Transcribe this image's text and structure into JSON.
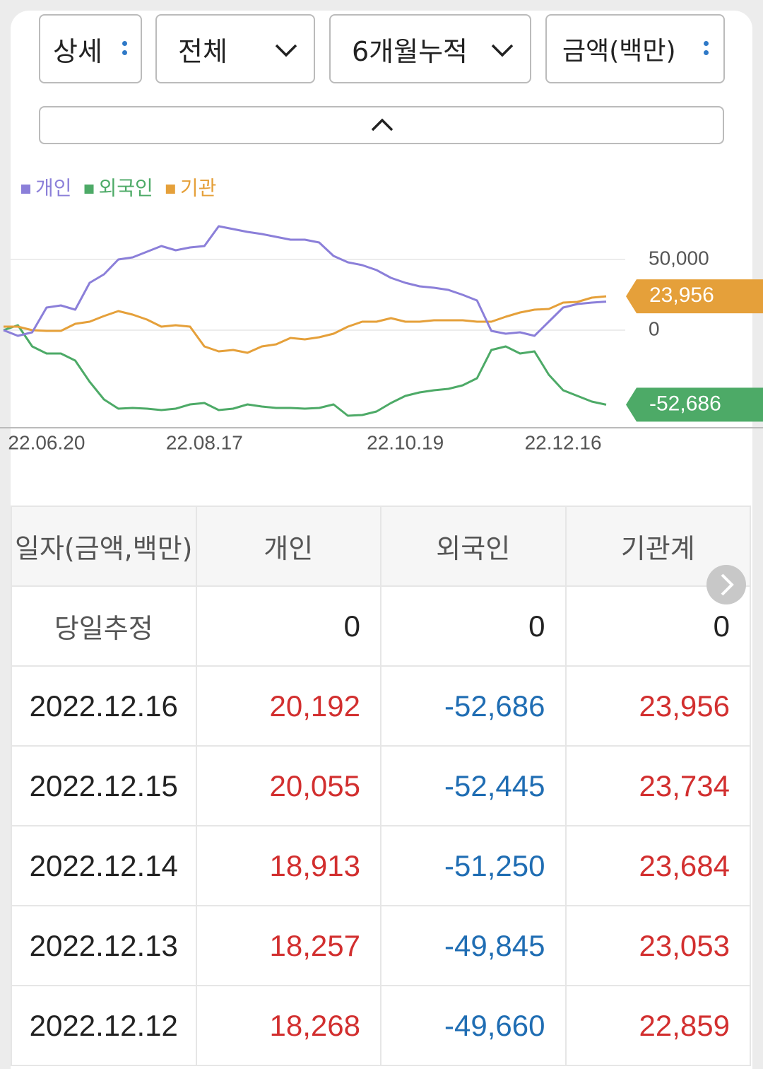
{
  "controls": {
    "detail": "상세",
    "scope": "전체",
    "period": "6개월누적",
    "unit": "금액(백만)"
  },
  "chart_data": {
    "type": "line",
    "categories": [
      null,
      null,
      null,
      "22.06.20",
      null,
      null,
      null,
      null,
      null,
      null,
      null,
      null,
      null,
      null,
      "22.08.17",
      null,
      null,
      null,
      null,
      null,
      null,
      null,
      null,
      null,
      null,
      null,
      null,
      null,
      "22.10.19",
      null,
      null,
      null,
      null,
      null,
      null,
      null,
      null,
      null,
      null,
      "22.12.16",
      null,
      null,
      null
    ],
    "series": [
      {
        "name": "개인",
        "color": "#8b7fd9",
        "values": [
          0,
          -4000,
          -1500,
          16000,
          17500,
          14500,
          33500,
          39500,
          50000,
          51500,
          55500,
          59500,
          56500,
          58500,
          59500,
          73500,
          71500,
          69500,
          68000,
          66000,
          64000,
          64000,
          62000,
          52500,
          48000,
          46000,
          42500,
          37000,
          33500,
          31000,
          30000,
          28500,
          25000,
          21000,
          -500,
          -2500,
          -1500,
          -4000,
          6000,
          16000,
          18500,
          19500,
          20192
        ]
      },
      {
        "name": "외국인",
        "color": "#4daa67",
        "end_label": "-52,686",
        "values": [
          0,
          3500,
          -11500,
          -16500,
          -16500,
          -21500,
          -36500,
          -49000,
          -55500,
          -55000,
          -55500,
          -56500,
          -55500,
          -52500,
          -51500,
          -56500,
          -55500,
          -52500,
          -54000,
          -55000,
          -55000,
          -55500,
          -55000,
          -52500,
          -60500,
          -60000,
          -57500,
          -51500,
          -46500,
          -44000,
          -42500,
          -41500,
          -39000,
          -34000,
          -14000,
          -11500,
          -16500,
          -15000,
          -31500,
          -42500,
          -46500,
          -50500,
          -52686
        ]
      },
      {
        "name": "기관",
        "color": "#e5a03a",
        "end_label": "23,956",
        "values": [
          2500,
          2500,
          0,
          -500,
          -500,
          4500,
          6000,
          10000,
          13500,
          11000,
          7500,
          2500,
          3500,
          2500,
          -11500,
          -15000,
          -14000,
          -16000,
          -11500,
          -10000,
          -5500,
          -6500,
          -5000,
          -2500,
          2500,
          6000,
          6000,
          8500,
          6000,
          6000,
          7000,
          7000,
          7000,
          6000,
          6000,
          9500,
          12500,
          14500,
          15000,
          19500,
          20000,
          23000,
          23956
        ]
      }
    ],
    "ylim": [
      -69000,
      83500
    ],
    "yticks": [
      {
        "value": 50000,
        "label": "50,000"
      },
      0
    ],
    "grid": true
  },
  "table": {
    "header": [
      "일자(금액,백만)",
      "개인",
      "외국인",
      "기관계"
    ],
    "rows": [
      [
        "당일추정",
        "0",
        "0",
        "0"
      ],
      [
        "2022.12.16",
        "20,192",
        "-52,686",
        "23,956"
      ],
      [
        "2022.12.15",
        "20,055",
        "-52,445",
        "23,734"
      ],
      [
        "2022.12.14",
        "18,913",
        "-51,250",
        "23,684"
      ],
      [
        "2022.12.13",
        "18,257",
        "-49,845",
        "23,053"
      ],
      [
        "2022.12.12",
        "18,268",
        "-49,660",
        "22,859"
      ]
    ]
  }
}
